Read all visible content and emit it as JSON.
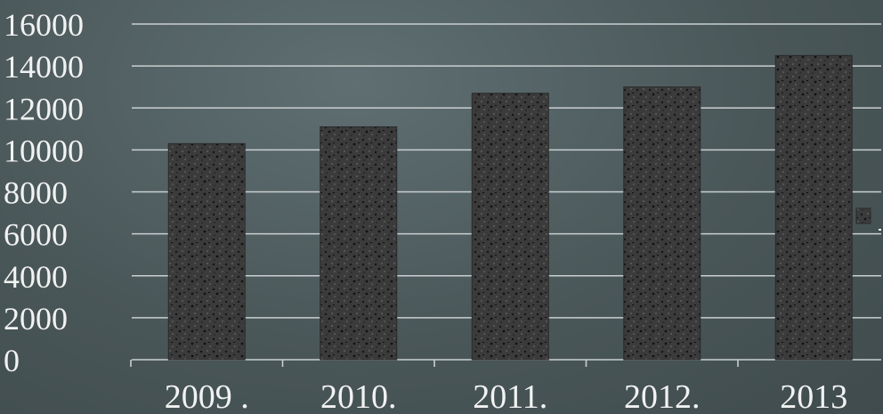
{
  "chart_data": {
    "type": "bar",
    "categories": [
      "2009 .",
      "2010.",
      "2011.",
      "2012.",
      "2013"
    ],
    "values": [
      10300,
      11100,
      12700,
      13000,
      14500
    ],
    "title": "",
    "xlabel": "",
    "ylabel": "",
    "ylim": [
      0,
      16000
    ],
    "yticks": [
      "0",
      "2000",
      "4000",
      "6000",
      "8000",
      "10000",
      "12000",
      "14000",
      "16000"
    ],
    "grid": true,
    "legend": "right",
    "colors": {
      "bar": "#3a3a3a",
      "grid": "#c9cfd0",
      "text": "#f2f2f2"
    }
  }
}
